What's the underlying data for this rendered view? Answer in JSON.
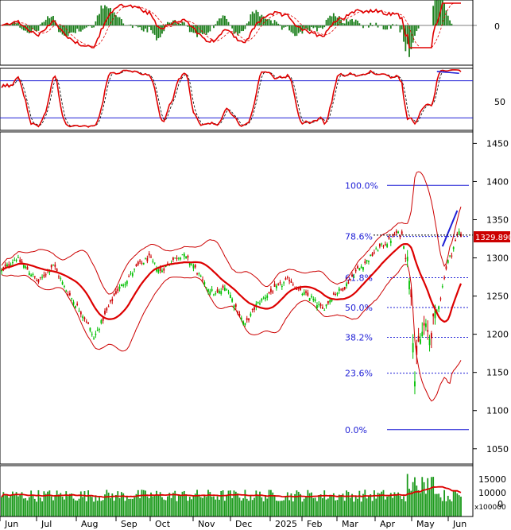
{
  "chart_data": [
    {
      "panel": "momentum-histogram",
      "type": "bar",
      "yticks": [
        "0"
      ],
      "signal_range": [
        -1.0,
        1.0
      ],
      "histogram_color": "#1b7f1b",
      "line_colors": [
        "#e00000",
        "#e00000"
      ]
    },
    {
      "panel": "oscillator",
      "type": "line",
      "yticks": [
        "50"
      ],
      "ylim": [
        0,
        100
      ],
      "bands": [
        80,
        20
      ],
      "band_color": "#1f1fd6",
      "line_colors": [
        "#e00000",
        "#000000"
      ]
    },
    {
      "panel": "price",
      "type": "candlestick",
      "ylim": [
        1030,
        1465
      ],
      "yticks": [
        "1050",
        "1100",
        "1150",
        "1200",
        "1250",
        "1300",
        "1350",
        "1400",
        "1450"
      ],
      "last_price_label": "1329.890",
      "last_price": 1329.89,
      "fib_levels": [
        {
          "label": "100.0%",
          "value": 1395
        },
        {
          "label": "78.6%",
          "value": 1328
        },
        {
          "label": "61.8%",
          "value": 1274
        },
        {
          "label": "50.0%",
          "value": 1235
        },
        {
          "label": "38.2%",
          "value": 1196
        },
        {
          "label": "23.6%",
          "value": 1149
        },
        {
          "label": "0.0%",
          "value": 1075
        }
      ],
      "ma_color": "#dd0000",
      "band_color": "#cc0000",
      "up_color": "#00c000",
      "down_color": "#cc0000",
      "trend_line_color": "#1f1fd6",
      "months": [
        "Jun",
        "Jul",
        "Aug",
        "Sep",
        "Oct",
        "Nov",
        "Dec",
        "2025",
        "Feb",
        "Mar",
        "Apr",
        "May",
        "Jun"
      ]
    },
    {
      "panel": "volume",
      "type": "bar",
      "yticks": [
        "15000",
        "10000",
        "0"
      ],
      "unit_label": "x100000",
      "bar_color": "#1b9a1b",
      "ma_color": "#dd0000"
    }
  ]
}
